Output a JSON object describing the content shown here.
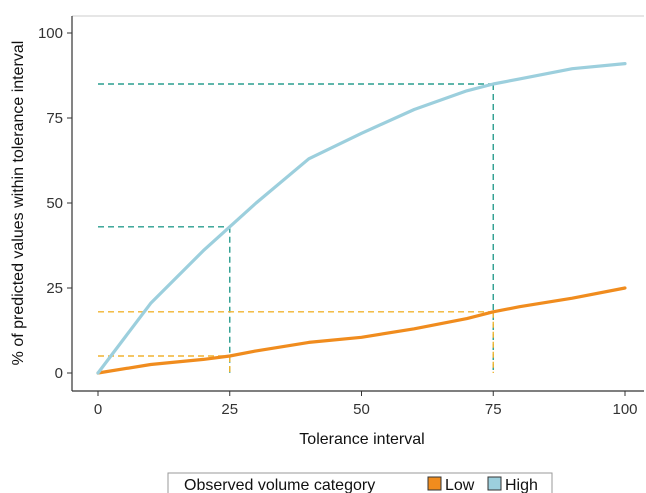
{
  "chart_data": {
    "type": "line",
    "xlabel": "Tolerance interval",
    "ylabel": "% of predicted values within tolerance interval",
    "xlim": [
      0,
      100
    ],
    "ylim": [
      0,
      100
    ],
    "xticks": [
      0,
      25,
      50,
      75,
      100
    ],
    "yticks": [
      0,
      25,
      50,
      75,
      100
    ],
    "grid": false,
    "legend": {
      "title": "Observed volume category",
      "position": "bottom",
      "entries": [
        "Low",
        "High"
      ]
    },
    "series": [
      {
        "name": "Low",
        "color": "#f08c1e",
        "x": [
          0,
          10,
          20,
          25,
          30,
          40,
          50,
          60,
          70,
          75,
          80,
          90,
          100
        ],
        "y": [
          0,
          2.5,
          4,
          5,
          6.5,
          9,
          10.5,
          13,
          16,
          18,
          19.5,
          22,
          25
        ]
      },
      {
        "name": "High",
        "color": "#9ccfdd",
        "x": [
          0,
          10,
          20,
          25,
          30,
          40,
          50,
          60,
          70,
          75,
          80,
          90,
          100
        ],
        "y": [
          0,
          20.5,
          36,
          43,
          50,
          63,
          70.5,
          77.5,
          83,
          85,
          86.5,
          89.5,
          91
        ]
      }
    ],
    "reference_lines": [
      {
        "series": "High",
        "x": 25,
        "y": 43,
        "color": "#2a9d8f"
      },
      {
        "series": "High",
        "x": 75,
        "y": 85,
        "color": "#2a9d8f"
      },
      {
        "series": "Low",
        "x": 25,
        "y": 5,
        "color": "#f0b430"
      },
      {
        "series": "Low",
        "x": 75,
        "y": 18,
        "color": "#f0b430"
      }
    ]
  }
}
